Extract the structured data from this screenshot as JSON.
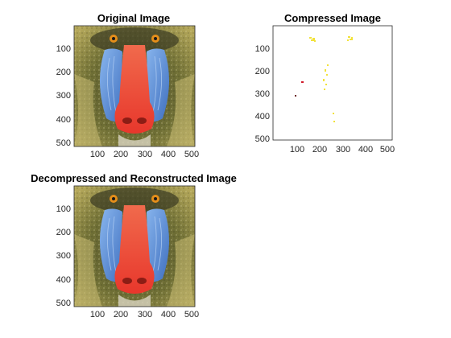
{
  "panels": [
    {
      "id": "original",
      "title": "Original Image",
      "xticks": [
        "100",
        "200",
        "300",
        "400",
        "500"
      ],
      "yticks": [
        "100",
        "200",
        "300",
        "400",
        "500"
      ],
      "content": "mandrill-color-image"
    },
    {
      "id": "compressed",
      "title": "Compressed Image",
      "xticks": [
        "100",
        "200",
        "300",
        "400",
        "500"
      ],
      "yticks": [
        "100",
        "200",
        "300",
        "400",
        "500"
      ],
      "content": "sparse-yellow-speckle-image"
    },
    {
      "id": "reconstructed",
      "title": "Decompressed and Reconstructed Image",
      "xticks": [
        "100",
        "200",
        "300",
        "400",
        "500"
      ],
      "yticks": [
        "100",
        "200",
        "300",
        "400",
        "500"
      ],
      "content": "mandrill-color-image"
    }
  ],
  "axis_range": [
    1,
    512
  ],
  "colors": {
    "frame": "#262626",
    "mandrill_nose": "#ee4b3a",
    "mandrill_cheeks": "#5c8fd6",
    "mandrill_fur": "#8a8a3c",
    "speckle": "#f2e23a",
    "red_dot": "#d11a2a"
  }
}
